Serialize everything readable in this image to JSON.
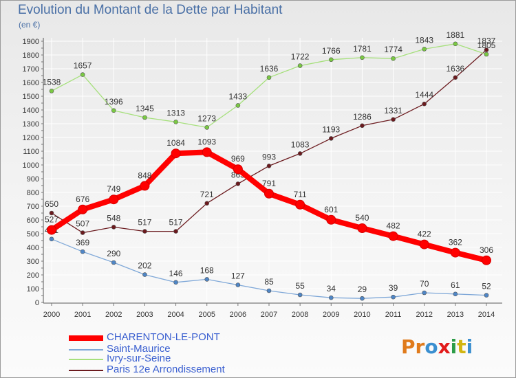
{
  "header": {
    "title": "Evolution du Montant de la Dette par Habitant",
    "unit": "(en €)"
  },
  "colors": {
    "title": "#4a70a6",
    "grid": "#ffffff",
    "axis": "#555555",
    "legend_text": "#3a5fd0"
  },
  "logo": {
    "text": "Proxiti",
    "letter_colors": [
      "#e07b1c",
      "#e07b1c",
      "#3a8fd0",
      "#e21b1b",
      "#2c9c48",
      "#d2b512",
      "#3a8fd0"
    ]
  },
  "chart_data": {
    "type": "line",
    "title": "Evolution du Montant de la Dette par Habitant",
    "subtitle": "(en €)",
    "xlabel": "",
    "ylabel": "",
    "x": [
      "2000",
      "2001",
      "2002",
      "2003",
      "2004",
      "2005",
      "2006",
      "2007",
      "2008",
      "2009",
      "2010",
      "2011",
      "2012",
      "2013",
      "2014"
    ],
    "ylim": [
      0,
      1900
    ],
    "yticks": [
      0,
      100,
      200,
      300,
      400,
      500,
      600,
      700,
      800,
      900,
      1000,
      1100,
      1200,
      1300,
      1400,
      1500,
      1600,
      1700,
      1800,
      1900
    ],
    "grid": true,
    "legend_position": "bottom-left",
    "series": [
      {
        "name": "Paris 12e  Arrondissement",
        "color": "#6b1a1e",
        "marker_color": "#6b1a1e",
        "values": [
          650,
          507,
          548,
          517,
          517,
          721,
          863,
          993,
          1083,
          1193,
          1286,
          1331,
          1444,
          1636,
          1837
        ],
        "labels": [
          "650",
          "507",
          "548",
          "517",
          "517",
          "721",
          "863",
          "993",
          "1083",
          "1193",
          "1286",
          "1331",
          "1444",
          "1636",
          "1837"
        ]
      },
      {
        "name": "Ivry-sur-Seine",
        "color": "#a6e07c",
        "marker_color": "#7ac943",
        "values": [
          1538,
          1657,
          1396,
          1345,
          1313,
          1273,
          1433,
          1636,
          1722,
          1766,
          1781,
          1774,
          1843,
          1881,
          1805
        ],
        "labels": [
          "1538",
          "1657",
          "1396",
          "1345",
          "1313",
          "1273",
          "1433",
          "1636",
          "1722",
          "1766",
          "1781",
          "1774",
          "1843",
          "1881",
          "1805"
        ]
      },
      {
        "name": "Saint-Maurice",
        "color": "#7fa8d8",
        "marker_color": "#4f86c6",
        "values": [
          461,
          369,
          290,
          202,
          146,
          168,
          127,
          85,
          55,
          34,
          29,
          39,
          70,
          61,
          52
        ],
        "labels": [
          "461",
          "369",
          "290",
          "202",
          "146",
          "168",
          "127",
          "85",
          "55",
          "34",
          "29",
          "39",
          "70",
          "61",
          "52"
        ]
      },
      {
        "name": "CHARENTON-LE-PONT",
        "color": "#ff0000",
        "marker_color": "#ff0000",
        "values": [
          527,
          676,
          749,
          848,
          1084,
          1093,
          969,
          791,
          711,
          601,
          540,
          482,
          422,
          362,
          306
        ],
        "labels": [
          "527",
          "676",
          "749",
          "848",
          "1084",
          "1093",
          "969",
          "791",
          "711",
          "601",
          "540",
          "482",
          "422",
          "362",
          "306"
        ]
      }
    ],
    "legend": [
      "CHARENTON-LE-PONT",
      "Saint-Maurice",
      "Ivry-sur-Seine",
      "Paris 12e  Arrondissement"
    ]
  }
}
